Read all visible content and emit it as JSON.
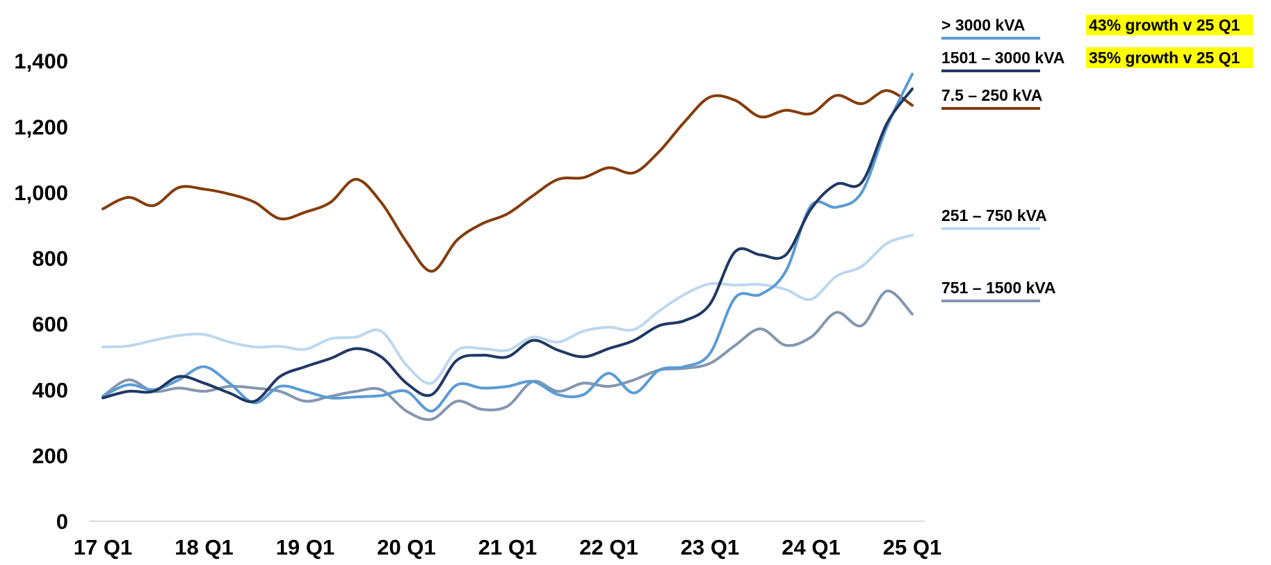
{
  "chart_data": {
    "type": "line",
    "title": "",
    "xlabel": "",
    "ylabel": "",
    "ylim": [
      0,
      1450
    ],
    "yticks": [
      "0",
      "200",
      "400",
      "600",
      "800",
      "1,000",
      "1,200",
      "1,400"
    ],
    "ytick_values": [
      0,
      200,
      400,
      600,
      800,
      1000,
      1200,
      1400
    ],
    "xtick_labels": [
      "17 Q1",
      "18 Q1",
      "19 Q1",
      "20 Q1",
      "21 Q1",
      "22 Q1",
      "23 Q1",
      "24 Q1",
      "25 Q1"
    ],
    "xtick_positions": [
      0,
      4,
      8,
      12,
      16,
      20,
      24,
      28,
      32
    ],
    "x_count": 33,
    "grid": false,
    "legend_position": "right",
    "series": [
      {
        "name": "> 3000 kVA",
        "color": "#5b9bd5",
        "note": "43%  growth v 25 Q1",
        "values": [
          380,
          415,
          400,
          430,
          470,
          420,
          360,
          410,
          395,
          375,
          378,
          382,
          395,
          335,
          415,
          405,
          410,
          425,
          385,
          385,
          450,
          390,
          460,
          470,
          510,
          680,
          690,
          760,
          960,
          955,
          1000,
          1200,
          1360
        ]
      },
      {
        "name": "1501 – 3000 kVA",
        "color": "#203864",
        "note": "35%  growth v 25 Q1",
        "values": [
          375,
          395,
          395,
          440,
          420,
          390,
          365,
          440,
          470,
          495,
          525,
          500,
          420,
          385,
          490,
          505,
          500,
          550,
          520,
          500,
          525,
          550,
          595,
          610,
          660,
          820,
          810,
          810,
          950,
          1025,
          1030,
          1210,
          1315
        ]
      },
      {
        "name": "7.5 – 250 kVA",
        "color": "#843c0c",
        "values": [
          950,
          985,
          960,
          1015,
          1010,
          995,
          970,
          920,
          940,
          970,
          1040,
          970,
          850,
          760,
          855,
          905,
          935,
          990,
          1040,
          1045,
          1075,
          1060,
          1125,
          1215,
          1290,
          1280,
          1230,
          1250,
          1240,
          1295,
          1270,
          1310,
          1265
        ]
      },
      {
        "name": "251 – 750 kVA",
        "color": "#bdd7ee",
        "values": [
          530,
          533,
          550,
          565,
          568,
          545,
          530,
          532,
          523,
          555,
          560,
          578,
          475,
          420,
          520,
          525,
          520,
          560,
          545,
          578,
          590,
          583,
          640,
          690,
          722,
          718,
          720,
          705,
          675,
          745,
          775,
          845,
          870
        ]
      },
      {
        "name": "751 – 1500 kVA",
        "color": "#8497b0",
        "values": [
          380,
          430,
          395,
          405,
          395,
          410,
          405,
          395,
          365,
          380,
          395,
          400,
          335,
          310,
          365,
          340,
          350,
          425,
          395,
          420,
          410,
          430,
          460,
          465,
          480,
          535,
          585,
          535,
          560,
          635,
          595,
          700,
          630
        ]
      }
    ]
  }
}
